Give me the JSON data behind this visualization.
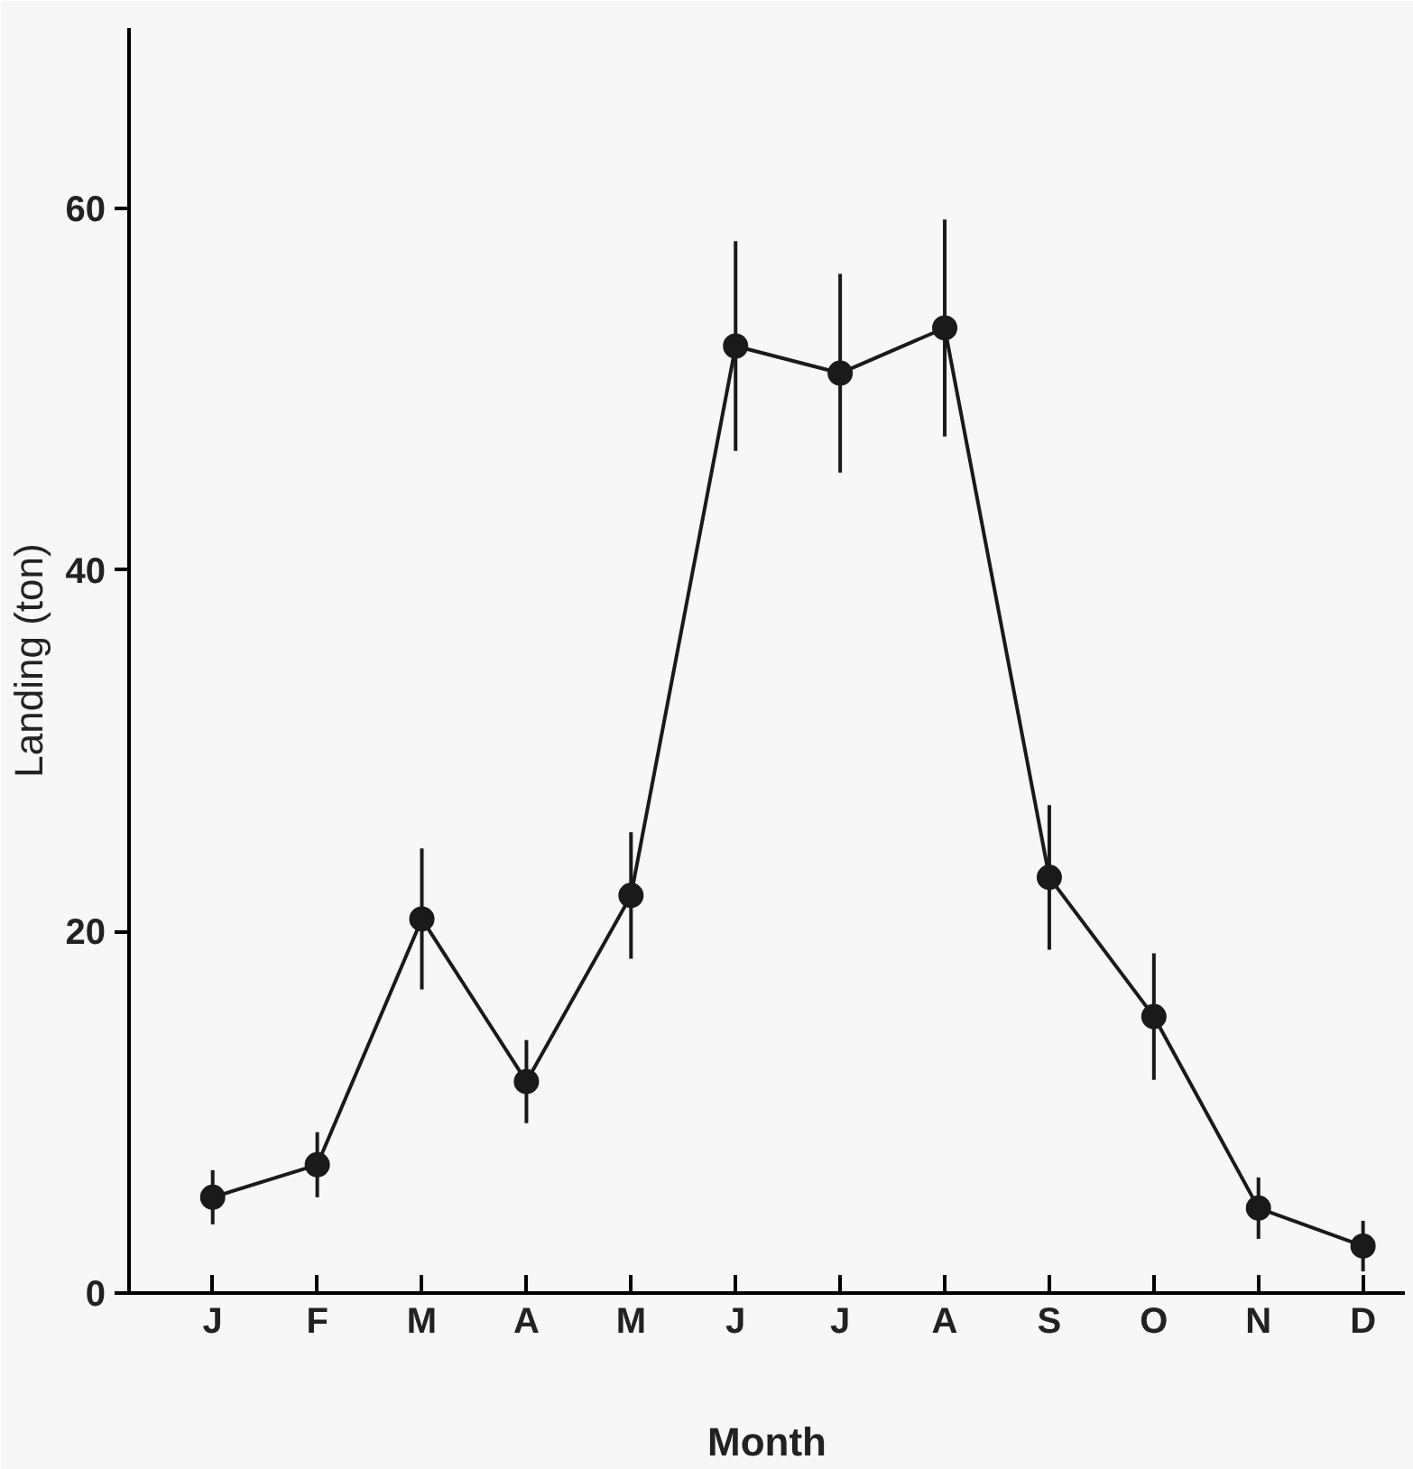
{
  "chart_data": {
    "type": "line",
    "xlabel": "Month",
    "ylabel": "Landing (ton)",
    "categories": [
      "J",
      "F",
      "M",
      "A",
      "M",
      "J",
      "J",
      "A",
      "S",
      "O",
      "N",
      "D"
    ],
    "values": [
      5.3,
      7.1,
      20.7,
      11.7,
      22.0,
      52.4,
      50.9,
      53.4,
      23.0,
      15.3,
      4.7,
      2.6
    ],
    "errors": [
      1.5,
      1.8,
      3.9,
      2.3,
      3.5,
      5.8,
      5.5,
      6.0,
      4.0,
      3.5,
      1.7,
      1.4
    ],
    "color": "#1a1a1a",
    "marker": "circle",
    "line_style": "solid",
    "ylim": [
      0,
      70
    ],
    "yticks": [
      0,
      20,
      40,
      60
    ],
    "grid": false
  }
}
